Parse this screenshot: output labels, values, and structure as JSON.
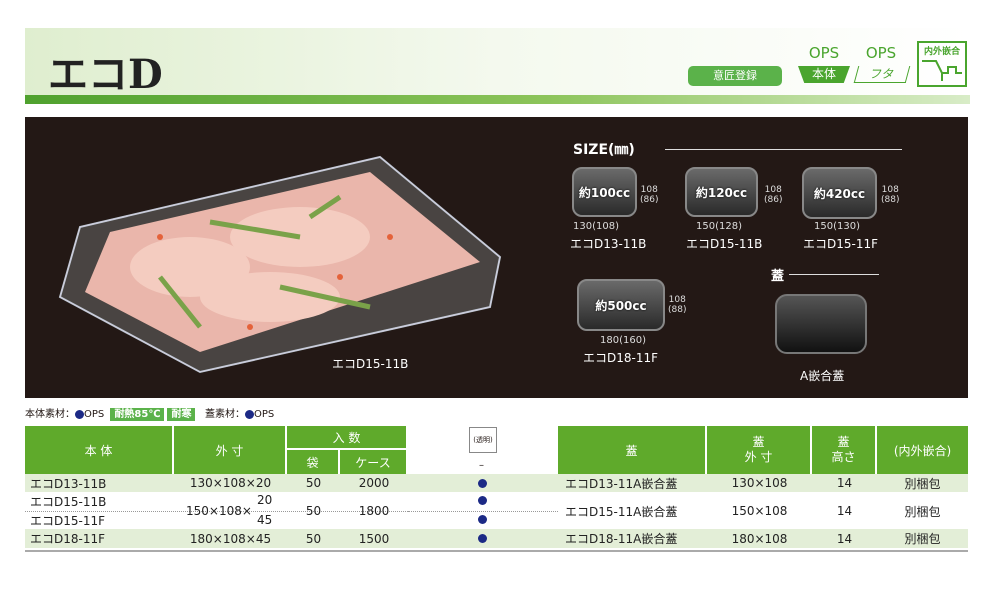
{
  "header": {
    "title": "エコD",
    "design_badge": "意匠登録",
    "ops_body": {
      "top": "OPS",
      "label": "本体"
    },
    "ops_lid": {
      "top": "OPS",
      "label": "フタ"
    },
    "fit_badge": "内外嵌合"
  },
  "photo": {
    "caption": "エコD15-11B"
  },
  "size": {
    "heading": "SIZE(㎜)",
    "items": [
      {
        "capacity": "約100cc",
        "height": "108",
        "height_inner": "(86)",
        "width": "130(108)",
        "model": "エコD13-11B"
      },
      {
        "capacity": "約120cc",
        "height": "108",
        "height_inner": "(86)",
        "width": "150(128)",
        "model": "エコD15-11B"
      },
      {
        "capacity": "約420cc",
        "height": "108",
        "height_inner": "(88)",
        "width": "150(130)",
        "model": "エコD15-11F"
      },
      {
        "capacity": "約500cc",
        "height": "108",
        "height_inner": "(88)",
        "width": "180(160)",
        "model": "エコD18-11F"
      }
    ],
    "lid_heading": "蓋",
    "lid_caption": "A嵌合蓋"
  },
  "material": {
    "body_label": "本体素材：",
    "body_material": "OPS",
    "heat": "耐熱85℃",
    "cold": "耐寒",
    "lid_label": "蓋素材：",
    "lid_material": "OPS",
    "dot_color": "#1c2a86"
  },
  "table_left": {
    "headers": {
      "body": "本 体",
      "outer": "外 寸",
      "qty": "入 数",
      "bag": "袋",
      "case": "ケース"
    },
    "rows": [
      {
        "model": "エコD13-11B",
        "size": "130×108×20",
        "bag": "50",
        "case": "2000"
      },
      {
        "model": "エコD15-11B",
        "model2": "エコD15-11F",
        "size": "150×108×",
        "size_h1": "20",
        "size_h2": "45",
        "bag": "50",
        "case": "1800"
      },
      {
        "model": "エコD18-11F",
        "size": "180×108×45",
        "bag": "50",
        "case": "1500"
      }
    ]
  },
  "color_col": {
    "label": "(透明)",
    "sub": "–"
  },
  "table_right": {
    "headers": {
      "lid": "蓋",
      "lid_outer": "蓋\n外 寸",
      "lid_height": "蓋\n高さ",
      "fit": "(内外嵌合)"
    },
    "rows": [
      {
        "lid": "エコD13-11A嵌合蓋",
        "outer": "130×108",
        "height": "14",
        "pack": "別梱包"
      },
      {
        "lid": "エコD15-11A嵌合蓋",
        "outer": "150×108",
        "height": "14",
        "pack": "別梱包"
      },
      {
        "lid": "エコD18-11A嵌合蓋",
        "outer": "180×108",
        "height": "14",
        "pack": "別梱包"
      }
    ]
  }
}
